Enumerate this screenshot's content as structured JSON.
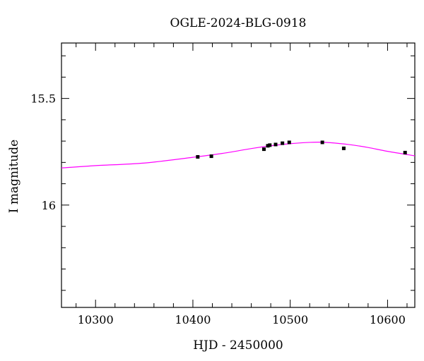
{
  "chart_data": {
    "type": "scatter",
    "title": "OGLE-2024-BLG-0918",
    "xlabel": "HJD - 2450000",
    "ylabel": "I magnitude",
    "xlim": [
      10265,
      10628
    ],
    "ylim": [
      16.48,
      15.24
    ],
    "y_inverted": true,
    "x_ticks": [
      10300,
      10400,
      10500,
      10600
    ],
    "x_tick_labels": [
      "10300",
      "10400",
      "10500",
      "10600"
    ],
    "y_ticks": [
      15.5,
      16
    ],
    "y_tick_labels": [
      "15.5",
      "16"
    ],
    "series": [
      {
        "kind": "points",
        "x": [
          10405,
          10419,
          10473,
          10477,
          10479,
          10485,
          10492,
          10499,
          10533,
          10555,
          10618
        ],
        "y": [
          15.774,
          15.771,
          15.738,
          15.722,
          15.719,
          15.716,
          15.71,
          15.706,
          15.706,
          15.734,
          15.754
        ],
        "yerr": [
          0.006,
          0.006,
          0.006,
          0.006,
          0.006,
          0.006,
          0.006,
          0.006,
          0.005,
          0.006,
          0.006
        ]
      },
      {
        "kind": "model_curve",
        "x": [
          10265,
          10300,
          10350,
          10400,
          10430,
          10460,
          10480,
          10500,
          10520,
          10530,
          10540,
          10560,
          10580,
          10600,
          10628
        ],
        "y": [
          15.826,
          15.815,
          15.803,
          15.776,
          15.758,
          15.735,
          15.722,
          15.712,
          15.706,
          15.705,
          15.707,
          15.716,
          15.73,
          15.748,
          15.769
        ]
      }
    ],
    "colors": {
      "points": "#000000",
      "model_curve": "#ff00ff",
      "axes": "#000000"
    },
    "grid": false,
    "legend": "none"
  }
}
